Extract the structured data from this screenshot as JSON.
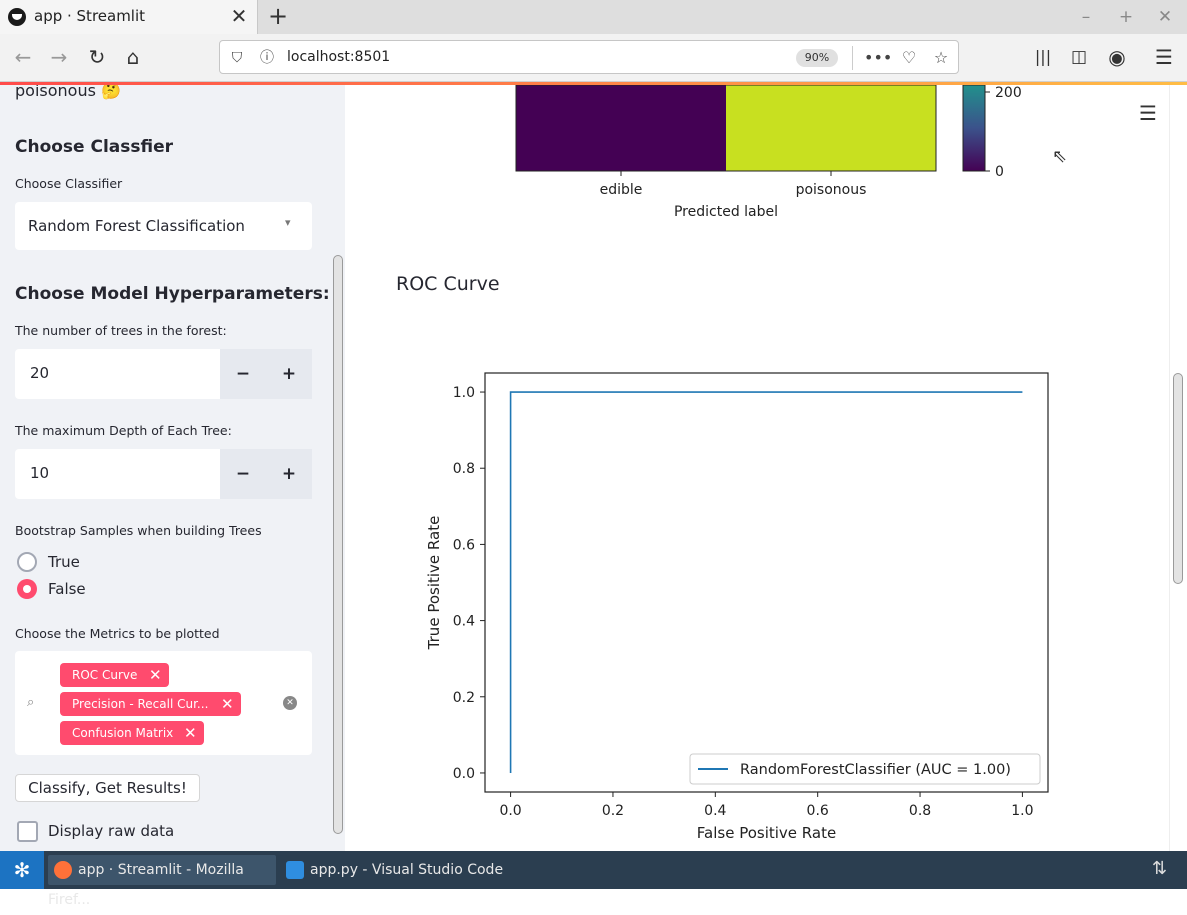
{
  "browser": {
    "tab_title": "app · Streamlit",
    "url": "localhost:8501",
    "zoom": "90%",
    "window_controls": [
      "–",
      "+",
      "✕"
    ]
  },
  "sidebar": {
    "header_fragment": "poisonous 🤔",
    "classifier_heading": "Choose Classfier",
    "classifier_label": "Choose Classifier",
    "classifier_value": "Random Forest Classification",
    "hyper_heading": "Choose Model Hyperparameters:",
    "trees_label": "The number of trees in the forest:",
    "trees_value": "20",
    "depth_label": "The maximum Depth of Each Tree:",
    "depth_value": "10",
    "minus": "−",
    "plus": "+",
    "bootstrap_label": "Bootstrap Samples when building Trees",
    "bootstrap_options": [
      "True",
      "False"
    ],
    "bootstrap_selected": "False",
    "metrics_label": "Choose the Metrics to be plotted",
    "metrics_selected": [
      "ROC Curve",
      "Precision - Recall Cur...",
      "Confusion Matrix"
    ],
    "classify_button": "Classify, Get Results!",
    "raw_data_label": "Display raw data"
  },
  "confusion_matrix": {
    "xticks": [
      "edible",
      "poisonous"
    ],
    "xlabel": "Predicted label",
    "colorbar_ticks": [
      "200",
      "0"
    ],
    "cell_colors": [
      "#440154",
      "#c8e020"
    ]
  },
  "main": {
    "roc_heading": "ROC Curve"
  },
  "chart_data": {
    "type": "line",
    "title": "",
    "xlabel": "False Positive Rate",
    "ylabel": "True Positive Rate",
    "xlim": [
      -0.05,
      1.05
    ],
    "ylim": [
      -0.05,
      1.05
    ],
    "xticks": [
      0.0,
      0.2,
      0.4,
      0.6,
      0.8,
      1.0
    ],
    "yticks": [
      0.0,
      0.2,
      0.4,
      0.6,
      0.8,
      1.0
    ],
    "xticklabels": [
      "0.0",
      "0.2",
      "0.4",
      "0.6",
      "0.8",
      "1.0"
    ],
    "yticklabels": [
      "0.0",
      "0.2",
      "0.4",
      "0.6",
      "0.8",
      "1.0"
    ],
    "grid": false,
    "legend_position": "lower-right",
    "series": [
      {
        "name": "RandomForestClassifier (AUC = 1.00)",
        "color": "#1f77b4",
        "x": [
          0.0,
          0.0,
          1.0
        ],
        "y": [
          0.0,
          1.0,
          1.0
        ]
      }
    ]
  },
  "taskbar": {
    "items": [
      "app · Streamlit - Mozilla Firef...",
      "app.py - Visual Studio Code"
    ]
  }
}
